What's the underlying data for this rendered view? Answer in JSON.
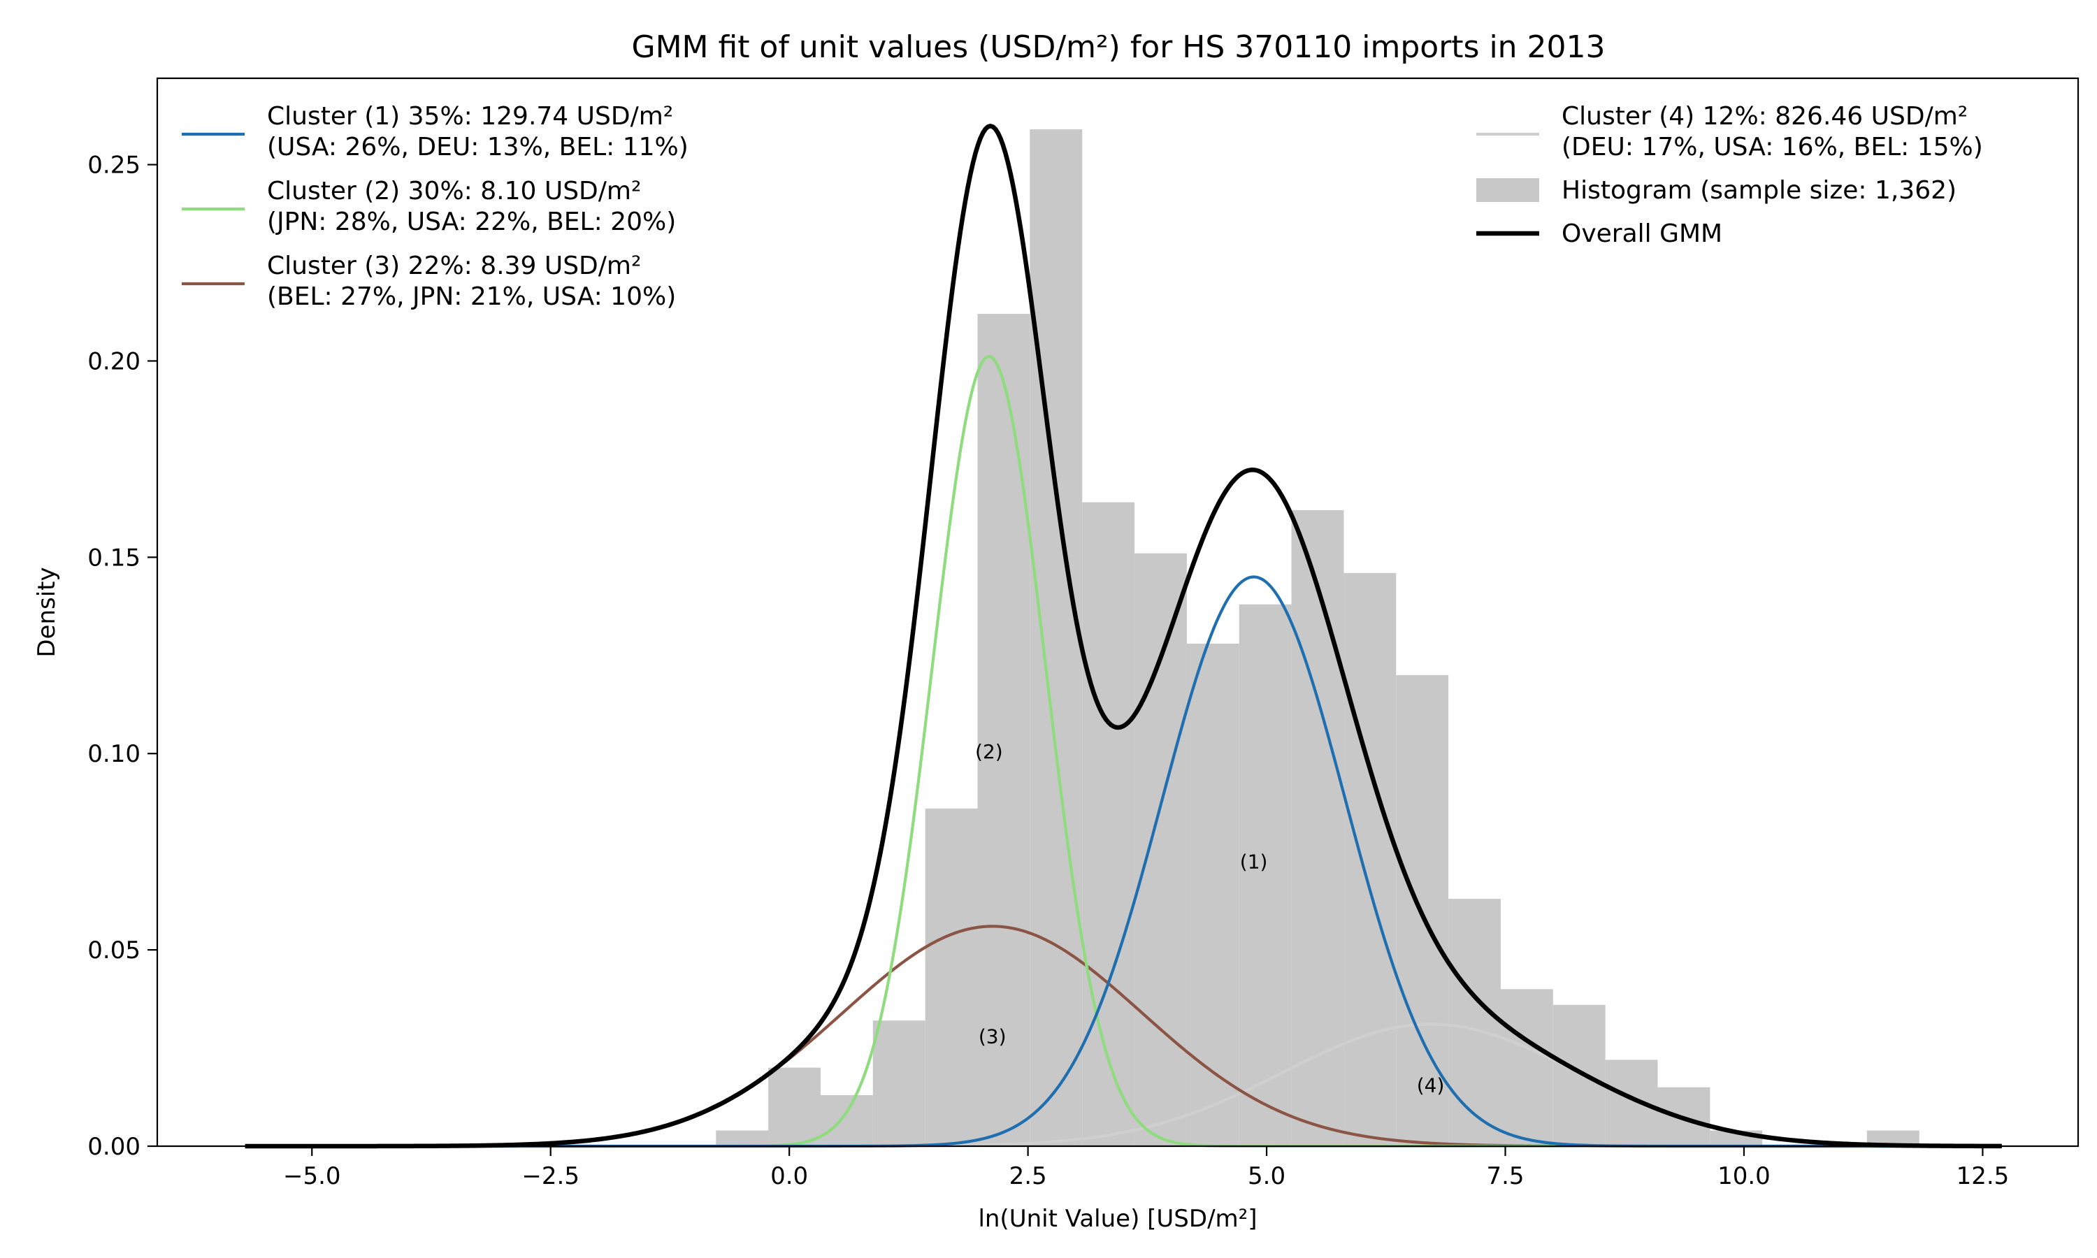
{
  "chart_data": {
    "type": "area",
    "title": "GMM fit of unit values (USD/m²) for HS 370110 imports in 2013",
    "xlabel": "ln(Unit Value) [USD/m²]",
    "ylabel": "Density",
    "xlim": [
      -6.62,
      13.5
    ],
    "ylim": [
      0,
      0.272
    ],
    "x_ticks": [
      -5.0,
      -2.5,
      0.0,
      2.5,
      5.0,
      7.5,
      10.0,
      12.5
    ],
    "x_tick_labels": [
      "−5.0",
      "−2.5",
      "0.0",
      "2.5",
      "5.0",
      "7.5",
      "10.0",
      "12.5"
    ],
    "y_ticks": [
      0.0,
      0.05,
      0.1,
      0.15,
      0.2,
      0.25
    ],
    "y_tick_labels": [
      "0.00",
      "0.05",
      "0.10",
      "0.15",
      "0.20",
      "0.25"
    ],
    "grid": false,
    "histogram": {
      "name": "Histogram (sample size: 1,362)",
      "color": "#c8c8c8",
      "bin_width": 0.548,
      "bin_edges_start": -5.7,
      "values": [
        0.0002,
        0.0,
        0.0,
        0.0,
        0.0,
        0.0008,
        0.0,
        0.0,
        0.0,
        0.004,
        0.02,
        0.013,
        0.032,
        0.086,
        0.212,
        0.259,
        0.164,
        0.151,
        0.128,
        0.138,
        0.162,
        0.146,
        0.12,
        0.063,
        0.04,
        0.036,
        0.022,
        0.015,
        0.004,
        0.0,
        0.0,
        0.004,
        0.0
      ]
    },
    "series": [
      {
        "name": "Cluster (1) 35%: 129.74 USD/m²",
        "detail": "(USA: 26%, DEU: 13%, BEL: 11%)",
        "label": "(1)",
        "weight": 0.35,
        "mean": 4.865,
        "sd": 0.963,
        "color": "#1f6fb0"
      },
      {
        "name": "Cluster (2) 30%: 8.10 USD/m²",
        "detail": "(JPN: 28%, USA: 22%, BEL: 20%)",
        "label": "(2)",
        "weight": 0.3,
        "mean": 2.092,
        "sd": 0.595,
        "color": "#8fdc7f"
      },
      {
        "name": "Cluster (3) 22%: 8.39 USD/m²",
        "detail": "(BEL: 27%, JPN: 21%, USA: 10%)",
        "label": "(3)",
        "weight": 0.22,
        "mean": 2.127,
        "sd": 1.567,
        "color": "#8b5444"
      },
      {
        "name": "Cluster (4) 12%: 826.46 USD/m²",
        "detail": "(DEU: 17%, USA: 16%, BEL: 15%)",
        "label": "(4)",
        "weight": 0.12,
        "mean": 6.717,
        "sd": 1.541,
        "color": "#cfcfcf"
      }
    ],
    "overall": {
      "name": "Overall GMM",
      "color": "#000000",
      "x_range": [
        -5.7,
        12.7
      ]
    },
    "legend_left": "top-left",
    "legend_right": "top-right"
  }
}
